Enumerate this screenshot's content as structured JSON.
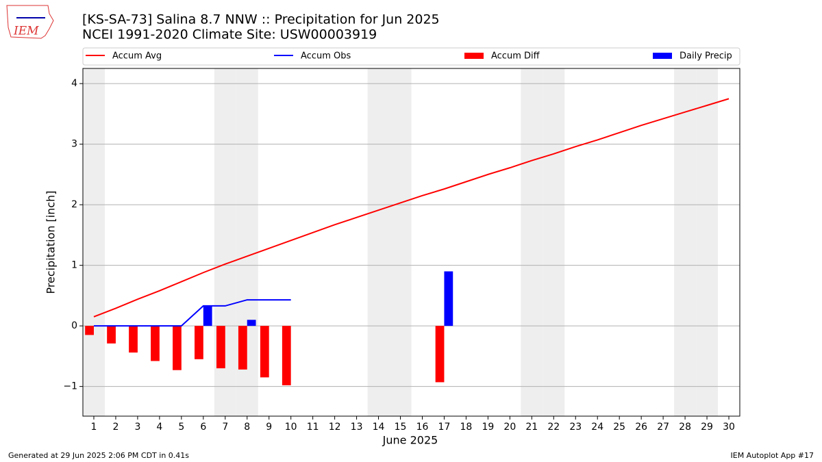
{
  "chart_data": {
    "type": "bar_line",
    "title": "[KS-SA-73] Salina 8.7 NNW :: Precipitation for Jun 2025",
    "subtitle": "NCEI 1991-2020 Climate Site: USW00003919",
    "xlabel": "June 2025",
    "ylabel": "Precipitation [inch]",
    "logo_text": "IEM",
    "footer_left": "Generated at 29 Jun 2025 2:06 PM CDT in 0.41s",
    "footer_right": "IEM Autoplot App #17",
    "x": [
      1,
      2,
      3,
      4,
      5,
      6,
      7,
      8,
      9,
      10,
      11,
      12,
      13,
      14,
      15,
      16,
      17,
      18,
      19,
      20,
      21,
      22,
      23,
      24,
      25,
      26,
      27,
      28,
      29,
      30
    ],
    "xlim": [
      0.5,
      30.5
    ],
    "xticks": [
      1,
      2,
      3,
      4,
      5,
      6,
      7,
      8,
      9,
      10,
      11,
      12,
      13,
      14,
      15,
      16,
      17,
      18,
      19,
      20,
      21,
      22,
      23,
      24,
      25,
      26,
      27,
      28,
      29,
      30
    ],
    "ylim": [
      -1.49,
      4.25
    ],
    "yticks": [
      {
        "value": -1,
        "label": "−1"
      },
      0,
      1,
      2,
      3,
      4
    ],
    "grid": true,
    "shaded_days": [
      1,
      7,
      8,
      14,
      15,
      21,
      22,
      28,
      29
    ],
    "shade_color": "#eeeeee",
    "series": [
      {
        "name": "Accum Avg",
        "kind": "line",
        "color": "#ff0000",
        "values": [
          0.15,
          0.29,
          0.44,
          0.58,
          0.73,
          0.88,
          1.02,
          1.15,
          1.28,
          1.41,
          1.54,
          1.67,
          1.79,
          1.91,
          2.03,
          2.15,
          2.26,
          2.38,
          2.5,
          2.61,
          2.73,
          2.84,
          2.96,
          3.07,
          3.19,
          3.31,
          3.42,
          3.53,
          3.64,
          3.75
        ]
      },
      {
        "name": "Accum Obs",
        "kind": "line",
        "color": "#0000ff",
        "values": [
          0,
          0,
          0,
          0,
          0,
          0.33,
          0.33,
          0.43,
          0.43,
          0.43,
          null,
          null,
          null,
          null,
          null,
          null,
          null,
          null,
          null,
          null,
          null,
          null,
          null,
          null,
          null,
          null,
          null,
          null,
          null,
          null
        ]
      },
      {
        "name": "Accum Diff",
        "kind": "bar",
        "offset": -0.2,
        "color": "#ff0000",
        "values": [
          -0.15,
          -0.29,
          -0.44,
          -0.58,
          -0.73,
          -0.55,
          -0.7,
          -0.72,
          -0.85,
          -0.98,
          null,
          null,
          null,
          null,
          null,
          null,
          -0.93,
          null,
          null,
          null,
          null,
          null,
          null,
          null,
          null,
          null,
          null,
          null,
          null,
          null
        ]
      },
      {
        "name": "Daily Precip",
        "kind": "bar",
        "offset": 0.2,
        "color": "#0000ff",
        "values": [
          0,
          0,
          0,
          0,
          0,
          0.33,
          0,
          0.1,
          0,
          0,
          null,
          null,
          null,
          null,
          null,
          null,
          0.9,
          null,
          null,
          null,
          null,
          null,
          null,
          null,
          null,
          null,
          null,
          null,
          null,
          null
        ]
      }
    ]
  }
}
